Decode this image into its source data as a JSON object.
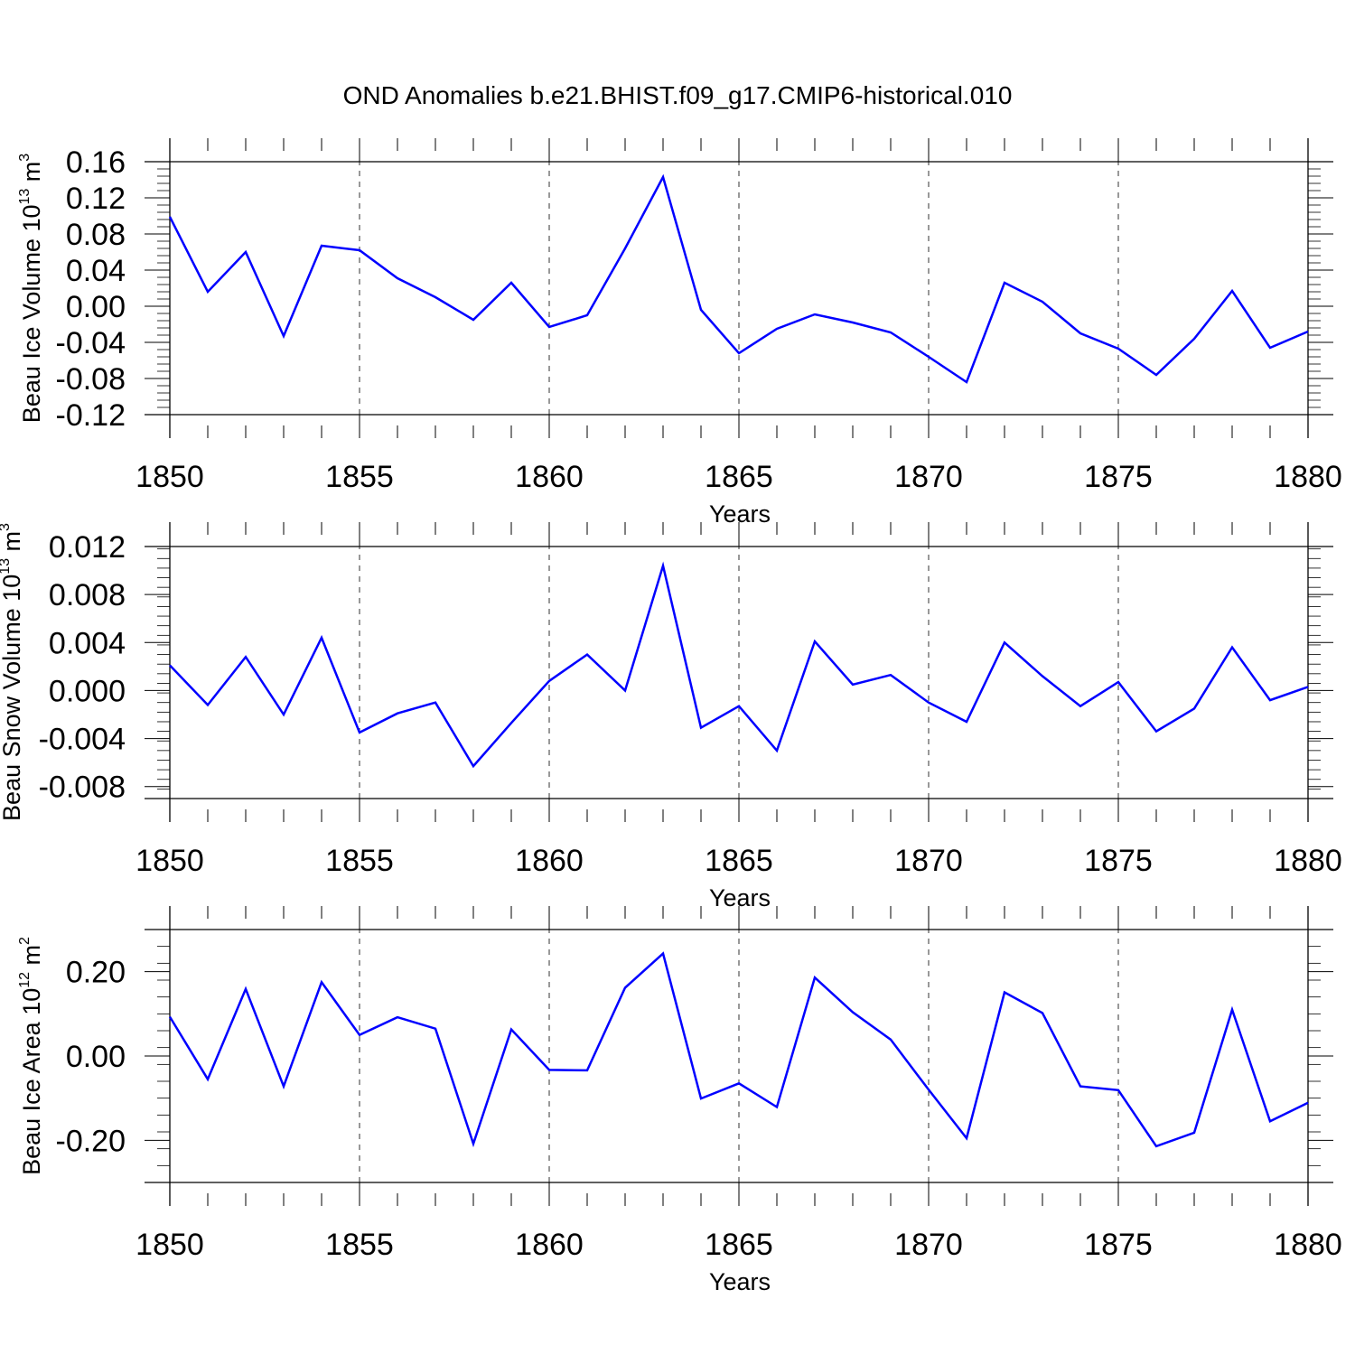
{
  "title": "OND Anomalies b.e21.BHIST.f09_g17.CMIP6-historical.010",
  "colors": {
    "series": "#0000ff",
    "axis": "#000000",
    "grid": "#000000"
  },
  "chart_data": [
    {
      "type": "line",
      "ylabel": {
        "base": "Beau Ice Volume 10",
        "exp": "13",
        "unit": " m",
        "unit_exp": "3"
      },
      "xlabel": "Years",
      "xlim": [
        1850,
        1880
      ],
      "ylim": [
        -0.12,
        0.16
      ],
      "yticks": [
        0.16,
        0.12,
        0.08,
        0.04,
        0.0,
        -0.04,
        -0.08,
        -0.12
      ],
      "ytick_labels": [
        "0.16",
        "0.12",
        "0.08",
        "0.04",
        "0.00",
        "-0.04",
        "-0.08",
        "-0.12"
      ],
      "xticks": [
        1850,
        1855,
        1860,
        1865,
        1870,
        1875,
        1880
      ],
      "x": [
        1850,
        1851,
        1852,
        1853,
        1854,
        1855,
        1856,
        1857,
        1858,
        1859,
        1860,
        1861,
        1862,
        1863,
        1864,
        1865,
        1866,
        1867,
        1868,
        1869,
        1870,
        1871,
        1872,
        1873,
        1874,
        1875,
        1876,
        1877,
        1878,
        1879,
        1880
      ],
      "values": [
        0.099,
        0.016,
        0.06,
        -0.033,
        0.067,
        0.062,
        0.031,
        0.01,
        -0.015,
        0.026,
        -0.023,
        -0.01,
        0.064,
        0.143,
        -0.004,
        -0.052,
        -0.025,
        -0.009,
        -0.018,
        -0.029,
        -0.056,
        -0.084,
        0.026,
        0.005,
        -0.03,
        -0.047,
        -0.076,
        -0.036,
        0.017,
        -0.046,
        -0.028
      ],
      "grid": "dashed vertical at major x ticks"
    },
    {
      "type": "line",
      "ylabel": {
        "base": "Beau Snow Volume 10",
        "exp": "13",
        "unit": " m",
        "unit_exp": "3"
      },
      "xlabel": "Years",
      "xlim": [
        1850,
        1880
      ],
      "ylim": [
        -0.009,
        0.012
      ],
      "yticks": [
        0.012,
        0.008,
        0.004,
        0.0,
        -0.004,
        -0.008
      ],
      "ytick_labels": [
        "0.012",
        "0.008",
        "0.004",
        "0.000",
        "-0.004",
        "-0.008"
      ],
      "xticks": [
        1850,
        1855,
        1860,
        1865,
        1870,
        1875,
        1880
      ],
      "x": [
        1850,
        1851,
        1852,
        1853,
        1854,
        1855,
        1856,
        1857,
        1858,
        1859,
        1860,
        1861,
        1862,
        1863,
        1864,
        1865,
        1866,
        1867,
        1868,
        1869,
        1870,
        1871,
        1872,
        1873,
        1874,
        1875,
        1876,
        1877,
        1878,
        1879,
        1880
      ],
      "values": [
        0.0021,
        -0.0012,
        0.0028,
        -0.002,
        0.0044,
        -0.0035,
        -0.0019,
        -0.001,
        -0.0063,
        -0.0027,
        0.0008,
        0.003,
        0.0,
        0.0104,
        -0.0031,
        -0.0013,
        -0.005,
        0.0041,
        0.0005,
        0.0013,
        -0.001,
        -0.0026,
        0.004,
        0.0012,
        -0.0013,
        0.0007,
        -0.0034,
        -0.0015,
        0.0036,
        -0.0008,
        0.0003
      ],
      "grid": "dashed vertical at major x ticks"
    },
    {
      "type": "line",
      "ylabel": {
        "base": "Beau Ice Area 10",
        "exp": "12",
        "unit": " m",
        "unit_exp": "2"
      },
      "xlabel": "Years",
      "xlim": [
        1850,
        1880
      ],
      "ylim": [
        -0.3,
        0.3
      ],
      "yticks": [
        0.2,
        0.0,
        -0.2
      ],
      "ytick_labels": [
        "0.20",
        "0.00",
        "-0.20"
      ],
      "xticks": [
        1850,
        1855,
        1860,
        1865,
        1870,
        1875,
        1880
      ],
      "x": [
        1850,
        1851,
        1852,
        1853,
        1854,
        1855,
        1856,
        1857,
        1858,
        1859,
        1860,
        1861,
        1862,
        1863,
        1864,
        1865,
        1866,
        1867,
        1868,
        1869,
        1870,
        1871,
        1872,
        1873,
        1874,
        1875,
        1876,
        1877,
        1878,
        1879,
        1880
      ],
      "values": [
        0.093,
        -0.055,
        0.159,
        -0.072,
        0.175,
        0.05,
        0.092,
        0.065,
        -0.208,
        0.063,
        -0.033,
        -0.034,
        0.162,
        0.243,
        -0.101,
        -0.065,
        -0.121,
        0.186,
        0.104,
        0.039,
        -0.08,
        -0.195,
        0.151,
        0.102,
        -0.072,
        -0.081,
        -0.214,
        -0.182,
        0.11,
        -0.155,
        -0.111
      ],
      "grid": "dashed vertical at major x ticks"
    }
  ]
}
